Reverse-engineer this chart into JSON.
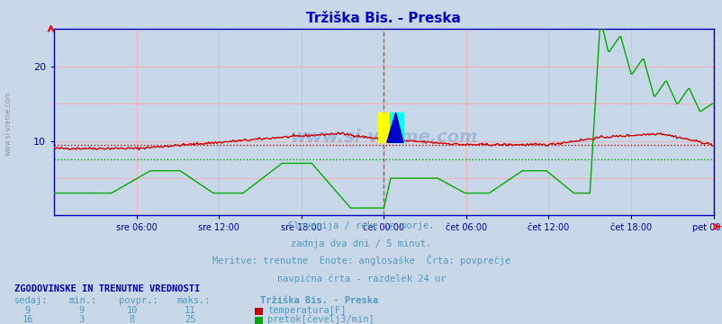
{
  "title": "Tržiška Bis. - Preska",
  "title_color": "#0000cc",
  "bg_color": "#c8d8e8",
  "plot_bg_color": "#c8d8e8",
  "xlim": [
    0,
    576
  ],
  "ylim": [
    0,
    25
  ],
  "yticks": [
    10,
    20
  ],
  "xtick_labels": [
    "sre 06:00",
    "sre 12:00",
    "sre 18:00",
    "čet 00:00",
    "čet 06:00",
    "čet 12:00",
    "čet 18:00",
    "pet 00:00"
  ],
  "xtick_positions": [
    72,
    144,
    216,
    288,
    360,
    432,
    504,
    576
  ],
  "vline_pos": 288,
  "temp_avg": 9.5,
  "flow_avg": 7.5,
  "temp_color": "#cc0000",
  "flow_color": "#00aa00",
  "grid_h_color": "#ffaaaa",
  "grid_v_color": "#ffaaaa",
  "axis_color": "#0000bb",
  "watermark": "www.si-vreme.com",
  "footer_line1": "Slovenija / reke in morje.",
  "footer_line2": "zadnja dva dni / 5 minut.",
  "footer_line3": "Meritve: trenutne  Enote: anglosaške  Črta: povprečje",
  "footer_line4": "navpična črta - razdelek 24 ur",
  "table_header": "ZGODOVINSKE IN TRENUTNE VREDNOSTI",
  "col_headers": [
    "sedaj:",
    "min.:",
    "povpr.:",
    "maks.:"
  ],
  "temp_row": [
    "9",
    "9",
    "10",
    "11"
  ],
  "flow_row": [
    "16",
    "3",
    "8",
    "25"
  ],
  "legend_title": "Tržiška Bis. - Preska",
  "legend_temp": "temperatura[F]",
  "legend_flow": "pretok[čevelj3/min]",
  "vline_color": "#777777",
  "right_vline_color": "#cc00cc",
  "logo_yellow": "#ffff00",
  "logo_cyan": "#00ffff",
  "logo_blue": "#0000cc",
  "side_text": "www.si-vreme.com"
}
